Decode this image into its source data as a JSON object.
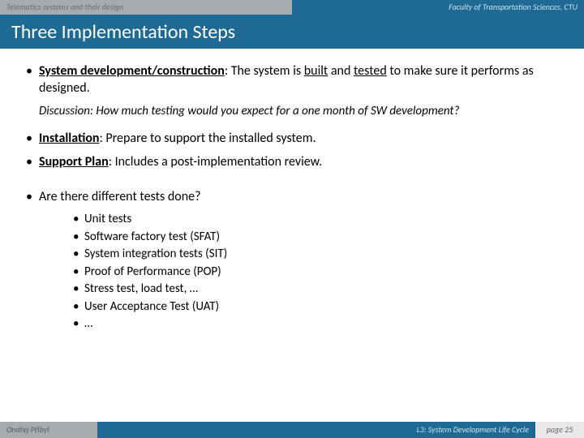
{
  "header": {
    "left": "Telematics systems and their design",
    "right": "Faculty of Transportation Sciences, CTU"
  },
  "title": "Three Implementation Steps",
  "bullets": {
    "b1_label": "System development/construction",
    "b1_text": ": The system is ",
    "b1_u1": "built",
    "b1_mid": " and ",
    "b1_u2": "tested",
    "b1_end": " to make sure it performs as designed.",
    "discussion": "Discussion: How much testing would you expect for a one month of SW development?",
    "b2_label": "Installation",
    "b2_text": ": Prepare to support the installed system.",
    "b3_label": "Support Plan",
    "b3_text": ": Includes a post-implementation review.",
    "b4_text": "Are there different tests done?"
  },
  "sublist": {
    "s1": "Unit tests",
    "s2": "Software factory test (SFAT)",
    "s3": "System integration tests (SIT)",
    "s4": "Proof of Performance (POP)",
    "s4a": "Stress test, load test, …",
    "s5": "User Acceptance Test (UAT)",
    "s6": "…"
  },
  "footer": {
    "left": "Ondřej Přibyl",
    "mid": "L3: System Development Life Cycle",
    "right": "page 25"
  }
}
